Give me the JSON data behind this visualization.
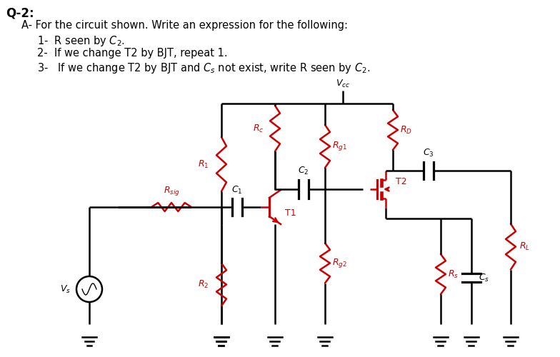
{
  "bg_color": "#ffffff",
  "text_color": "#000000",
  "red_color": "#cc0000",
  "black_color": "#000000",
  "title_line1": "Q-2:",
  "title_line2": "A- For the circuit shown. Write an expression for the following:",
  "item1": "1-  R seen by $C_2$.",
  "item2": "2-  If we change T2 by BJT, repeat 1.",
  "item3": "3-   If we change T2 by BJT and $C_s$ not exist, write R seen by $C_2$.",
  "Vcc_label": "$V_{cc}$",
  "R1": "$R_1$",
  "Rc": "$R_c$",
  "Rg1": "$R_{g1}$",
  "RD": "$R_D$",
  "C3": "$C_3$",
  "C2": "$C_2$",
  "T2": "T2",
  "RL": "$R_L$",
  "C1": "$C_1$",
  "T1": "T1",
  "Rg2": "$R_{g2}$",
  "Rs": "$R_s$",
  "Cs": "$C_s$",
  "Rsig": "$R_{sig}$",
  "R2": "$R_2$",
  "Vs": "$V_s$"
}
